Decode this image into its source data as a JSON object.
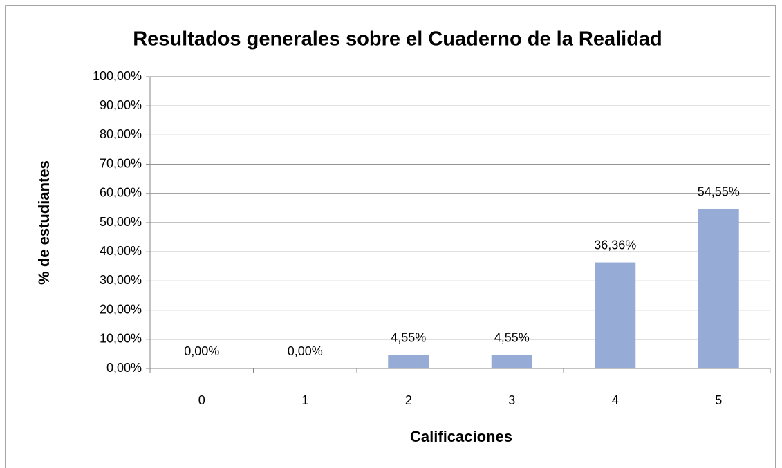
{
  "chart_data": {
    "type": "bar",
    "title": "Resultados generales sobre el Cuaderno de la Realidad",
    "x_label": "Calificaciones",
    "y_label": "% de estudiantes",
    "categories": [
      "0",
      "1",
      "2",
      "3",
      "4",
      "5"
    ],
    "values": [
      0,
      0,
      4.55,
      4.55,
      36.36,
      54.55
    ],
    "value_labels": [
      "0,00%",
      "0,00%",
      "4,55%",
      "4,55%",
      "36,36%",
      "54,55%"
    ],
    "color": "#96acd6",
    "ylim": [
      0,
      100
    ],
    "yticks": [
      {
        "value": 0,
        "label": "0,00%"
      },
      {
        "value": 10,
        "label": "10,00%"
      },
      {
        "value": 20,
        "label": "20,00%"
      },
      {
        "value": 30,
        "label": "30,00%"
      },
      {
        "value": 40,
        "label": "40,00%"
      },
      {
        "value": 50,
        "label": "50,00%"
      },
      {
        "value": 60,
        "label": "60,00%"
      },
      {
        "value": 70,
        "label": "70,00%"
      },
      {
        "value": 80,
        "label": "80,00%"
      },
      {
        "value": 90,
        "label": "90,00%"
      },
      {
        "value": 100,
        "label": "100,00%"
      }
    ],
    "grid": true
  }
}
